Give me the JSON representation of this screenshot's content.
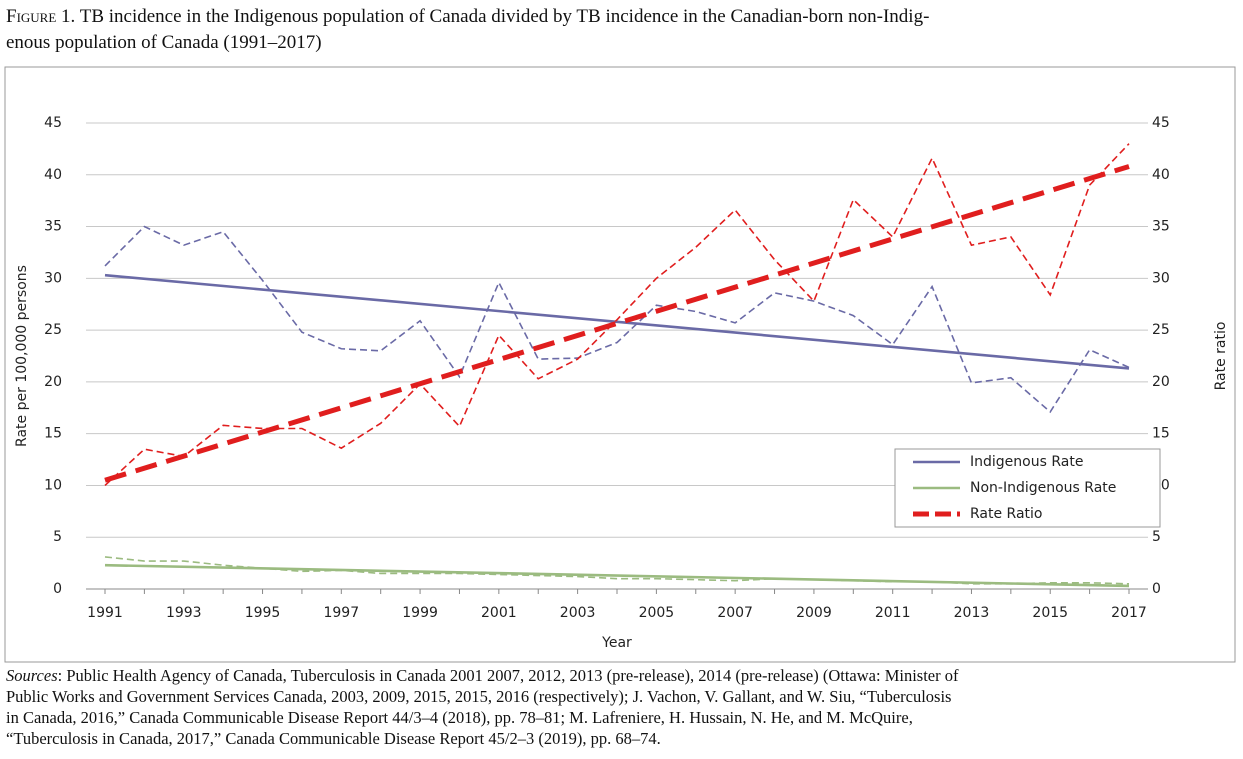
{
  "figure_label": "Figure 1.",
  "title_lines": [
    "TB incidence in the Indigenous population of Canada divided by TB incidence in the Canadian-born non-Indig-",
    "enous population of Canada (1991–2017)"
  ],
  "chart_data": {
    "type": "line",
    "xlabel": "Year",
    "ylabel": "Rate per 100,000 persons",
    "y2label": "Rate ratio",
    "categories": [
      "1991",
      null,
      "1993",
      null,
      "1995",
      null,
      "1997",
      null,
      "1999",
      null,
      "2001",
      null,
      "2003",
      null,
      "2005",
      null,
      "2007",
      null,
      "2009",
      null,
      "2011",
      null,
      "2013",
      null,
      "2015",
      null,
      "2017"
    ],
    "ylim": [
      0,
      45
    ],
    "yticks": [
      0,
      5,
      10,
      15,
      20,
      25,
      30,
      35,
      40,
      45
    ],
    "y2lim": [
      0,
      45
    ],
    "y2ticks": [
      0,
      5,
      10,
      15,
      20,
      25,
      30,
      35,
      40,
      45
    ],
    "grid": true,
    "legend": "lower right",
    "series": [
      {
        "name": "Indigenous Rate",
        "color": "#6a6aa6",
        "values": [
          31.2,
          35.0,
          33.2,
          34.5,
          29.8,
          24.8,
          23.2,
          23.0,
          25.9,
          20.5,
          29.6,
          22.2,
          22.3,
          23.8,
          27.4,
          26.8,
          25.7,
          28.6,
          27.8,
          26.4,
          23.6,
          29.2,
          19.9,
          20.4,
          17.1,
          23.1,
          21.4
        ],
        "trendline": {
          "start": 30.3,
          "end": 21.3
        }
      },
      {
        "name": "Non-Indigenous Rate",
        "color": "#9bbb80",
        "values": [
          3.1,
          2.7,
          2.7,
          2.3,
          2.0,
          1.7,
          1.8,
          1.5,
          1.5,
          1.5,
          1.4,
          1.3,
          1.2,
          1.0,
          1.0,
          0.9,
          0.8,
          1.0,
          0.9,
          0.8,
          0.7,
          0.7,
          0.5,
          0.5,
          0.6,
          0.6,
          0.5
        ],
        "trendline": {
          "start": 2.3,
          "end": 0.3
        }
      },
      {
        "name": "Rate Ratio",
        "color": "#e01e1e",
        "axis": "y2",
        "values": [
          10.0,
          13.5,
          12.8,
          15.8,
          15.5,
          15.5,
          13.6,
          16.0,
          19.8,
          15.7,
          24.5,
          20.3,
          22.2,
          26.0,
          30.0,
          33.0,
          36.6,
          31.8,
          27.8,
          37.6,
          34.0,
          41.6,
          33.2,
          34.0,
          28.4,
          39.0,
          43.0
        ],
        "trendline": {
          "start": 10.5,
          "end": 40.8
        }
      }
    ]
  },
  "sources_label": "Sources",
  "sources_lines": [
    ": Public Health Agency of Canada, Tuberculosis in Canada 2001 2007, 2012, 2013 (pre-release), 2014 (pre-release) (Ottawa: Minister of",
    "Public Works and Government Services Canada, 2003, 2009, 2015, 2015, 2016 (respectively); J. Vachon, V. Gallant, and W. Siu, “Tuberculosis",
    "in Canada, 2016,” Canada Communicable Disease Report 44/3–4 (2018), pp. 78–81; M. Lafreniere, H. Hussain, N. He, and M. McQuire,",
    "“Tuberculosis in Canada, 2017,” Canada Communicable Disease Report 45/2–3 (2019), pp. 68–74."
  ]
}
